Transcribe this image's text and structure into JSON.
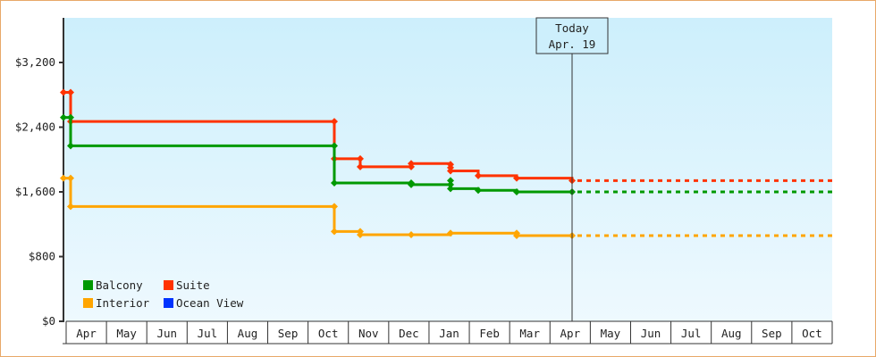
{
  "chart_data": {
    "type": "line",
    "title": "",
    "xlabel": "",
    "ylabel": "",
    "ylim": [
      0,
      3800
    ],
    "y_ticks": [
      "$0",
      "$800",
      "$1,600",
      "$2,400",
      "$3,200"
    ],
    "x_ticks": [
      "Apr",
      "May",
      "Jun",
      "Jul",
      "Aug",
      "Sep",
      "Oct",
      "Nov",
      "Dec",
      "Jan",
      "Feb",
      "Mar",
      "Apr",
      "May",
      "Jun",
      "Jul",
      "Aug",
      "Sep",
      "Oct"
    ],
    "today_marker": {
      "line1": "Today",
      "line2": "Apr. 19"
    },
    "legend": [
      {
        "name": "Balcony",
        "color": "#009900"
      },
      {
        "name": "Suite",
        "color": "#ff3300"
      },
      {
        "name": "Interior",
        "color": "#ffa500"
      },
      {
        "name": "Ocean View",
        "color": "#0033ff"
      }
    ],
    "series": [
      {
        "name": "Suite",
        "color": "#ff3300",
        "points": [
          [
            "Apr-start",
            2830
          ],
          [
            "Apr",
            2830
          ],
          [
            "Apr",
            2470
          ],
          [
            "Oct",
            2470
          ],
          [
            "Oct",
            2010
          ],
          [
            "Nov",
            2010
          ],
          [
            "Nov",
            1910
          ],
          [
            "Dec",
            1910
          ],
          [
            "Dec",
            1950
          ],
          [
            "Jan",
            1900
          ],
          [
            "Jan",
            1940
          ],
          [
            "Jan",
            1860
          ],
          [
            "Feb",
            1800
          ],
          [
            "Mar",
            1770
          ],
          [
            "Apr",
            1740
          ]
        ],
        "projection": 1740
      },
      {
        "name": "Balcony",
        "color": "#009900",
        "points": [
          [
            "Apr-start",
            2520
          ],
          [
            "Apr",
            2520
          ],
          [
            "Apr",
            2170
          ],
          [
            "Oct",
            2170
          ],
          [
            "Oct",
            1710
          ],
          [
            "Dec",
            1710
          ],
          [
            "Dec",
            1690
          ],
          [
            "Jan",
            1690
          ],
          [
            "Jan",
            1740
          ],
          [
            "Jan",
            1640
          ],
          [
            "Feb",
            1620
          ],
          [
            "Mar",
            1600
          ],
          [
            "Apr",
            1600
          ]
        ],
        "projection": 1600
      },
      {
        "name": "Interior",
        "color": "#ffa500",
        "points": [
          [
            "Apr-start",
            1770
          ],
          [
            "Apr",
            1770
          ],
          [
            "Apr",
            1420
          ],
          [
            "Oct",
            1420
          ],
          [
            "Oct",
            1110
          ],
          [
            "Nov",
            1110
          ],
          [
            "Nov",
            1070
          ],
          [
            "Dec",
            1070
          ],
          [
            "Jan",
            1090
          ],
          [
            "Mar",
            1090
          ],
          [
            "Mar",
            1060
          ],
          [
            "Apr",
            1060
          ]
        ],
        "projection": 1060
      }
    ]
  }
}
